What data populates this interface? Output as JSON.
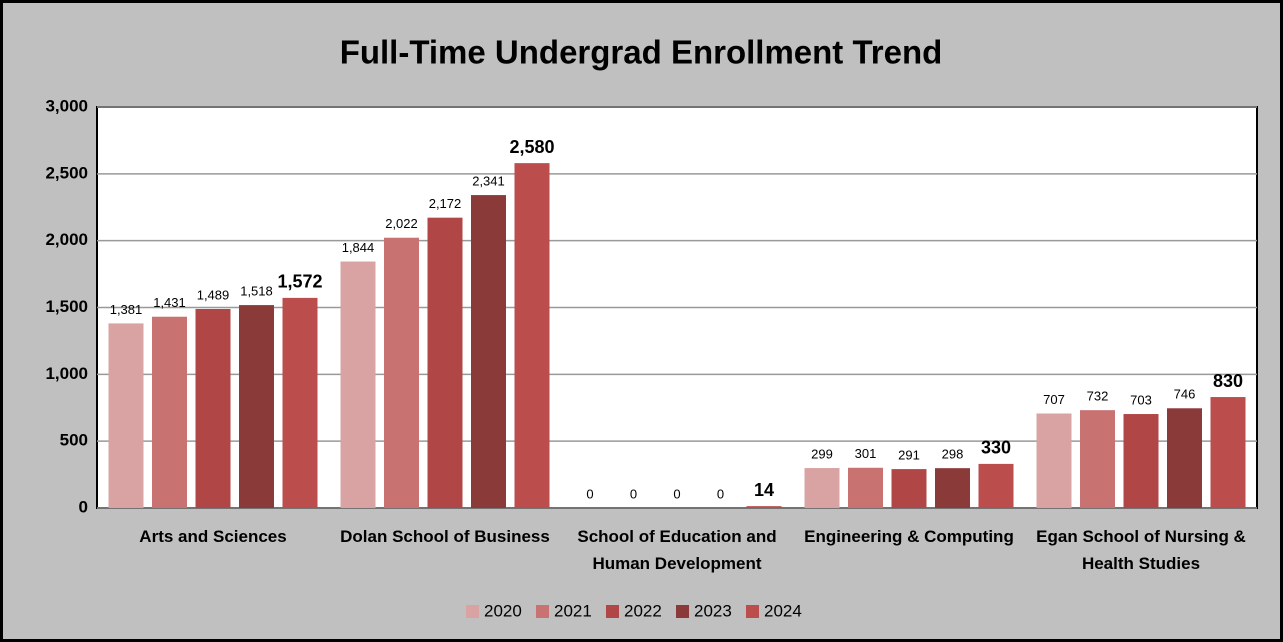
{
  "chart_data": {
    "type": "bar",
    "title": "Full-Time Undergrad Enrollment Trend",
    "categories": [
      "Arts and Sciences",
      "Dolan School of Business",
      "School of Education and Human Development",
      "Engineering & Computing",
      "Egan School of Nursing & Health Studies"
    ],
    "series": [
      {
        "name": "2020",
        "color": "#d9a3a3",
        "values": [
          1381,
          1844,
          0,
          299,
          707
        ],
        "value_labels": [
          "1,381",
          "1,844",
          "0",
          "299",
          "707"
        ]
      },
      {
        "name": "2021",
        "color": "#c97272",
        "values": [
          1431,
          2022,
          0,
          301,
          732
        ],
        "value_labels": [
          "1,431",
          "2,022",
          "0",
          "301",
          "732"
        ]
      },
      {
        "name": "2022",
        "color": "#b04646",
        "values": [
          1489,
          2172,
          0,
          291,
          703
        ],
        "value_labels": [
          "1,489",
          "2,172",
          "0",
          "291",
          "703"
        ]
      },
      {
        "name": "2023",
        "color": "#8b3a3a",
        "values": [
          1518,
          2341,
          0,
          298,
          746
        ],
        "value_labels": [
          "1,518",
          "2,341",
          "0",
          "298",
          "746"
        ]
      },
      {
        "name": "2024",
        "color": "#bb4d4d",
        "values": [
          1572,
          2580,
          14,
          330,
          830
        ],
        "value_labels": [
          "1,572",
          "2,580",
          "14",
          "330",
          "830"
        ]
      }
    ],
    "ylim": [
      0,
      3000
    ],
    "yticks": [
      0,
      {
        "value": 500,
        "label": "500"
      },
      {
        "value": 1000,
        "label": "1,000"
      },
      {
        "value": 1500,
        "label": "1,500"
      },
      {
        "value": 2000,
        "label": "2,000"
      },
      {
        "value": 2500,
        "label": "2,500"
      },
      {
        "value": 3000,
        "label": "3,000"
      }
    ],
    "grid": true,
    "legend": "bottom"
  }
}
